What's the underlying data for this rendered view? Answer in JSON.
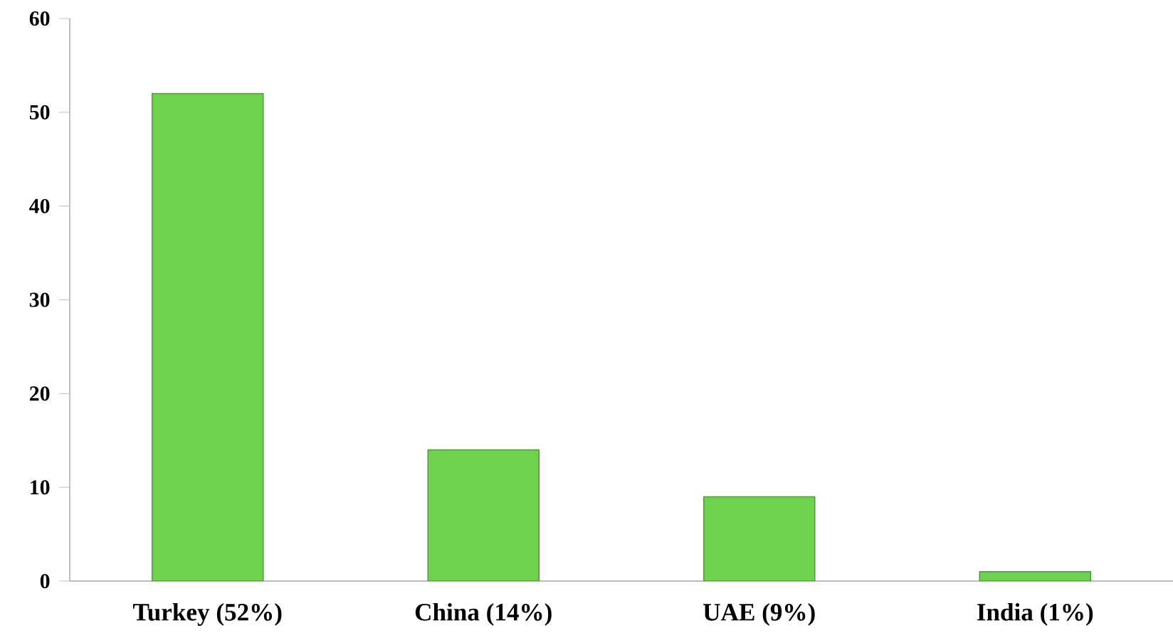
{
  "chart_data": {
    "type": "bar",
    "categories": [
      "Turkey (52%)",
      "China (14%)",
      "UAE (9%)",
      "India (1%)"
    ],
    "values": [
      52,
      14,
      9,
      1
    ],
    "color": "#6fd24f",
    "ylim": [
      0,
      60
    ],
    "yticks": [
      0,
      10,
      20,
      30,
      40,
      50,
      60
    ],
    "grid": false
  }
}
